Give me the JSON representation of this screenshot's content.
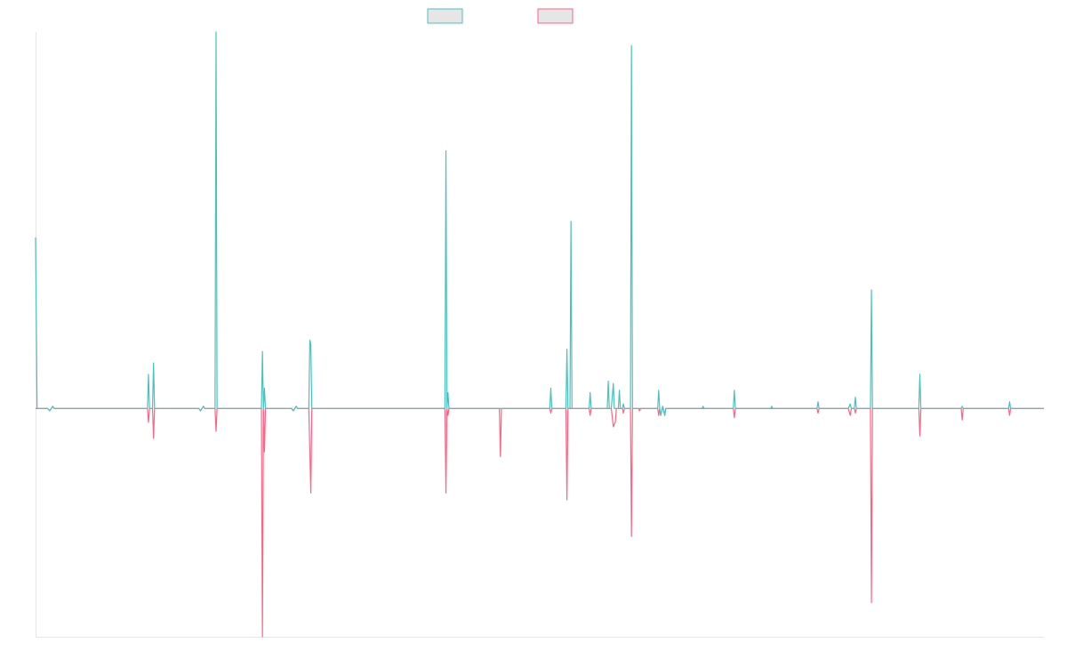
{
  "colors": {
    "series_a": "#4bc0c0",
    "series_b": "#ff6384",
    "legend_fill": "#e6e6e6",
    "axis": "#e6e6e6"
  },
  "chart_data": {
    "type": "line",
    "title": "",
    "xlabel": "",
    "ylabel": "",
    "grid": false,
    "legend_position": "top",
    "x_range": [
      0,
      1000
    ],
    "ylim": [
      -100,
      165
    ],
    "series": [
      {
        "color": "#4bc0c0",
        "points": [
          [
            0,
            75
          ],
          [
            1.5,
            0
          ],
          [
            12,
            0
          ],
          [
            14,
            -1
          ],
          [
            15.5,
            0
          ],
          [
            17,
            1
          ],
          [
            18.5,
            0
          ],
          [
            111,
            0
          ],
          [
            112,
            15
          ],
          [
            113,
            0
          ],
          [
            116,
            0
          ],
          [
            117,
            20
          ],
          [
            118,
            0
          ],
          [
            162,
            0
          ],
          [
            163.5,
            -1
          ],
          [
            165,
            0
          ],
          [
            166.5,
            1
          ],
          [
            168,
            0
          ],
          [
            178,
            0
          ],
          [
            179,
            165
          ],
          [
            180,
            0
          ],
          [
            224,
            0
          ],
          [
            225,
            25
          ],
          [
            226,
            0
          ],
          [
            227,
            9
          ],
          [
            228,
            0
          ],
          [
            254,
            0
          ],
          [
            255.5,
            -1
          ],
          [
            257,
            0
          ],
          [
            258.5,
            1
          ],
          [
            260,
            0
          ],
          [
            271,
            0
          ],
          [
            272,
            30
          ],
          [
            273,
            28
          ],
          [
            274,
            0
          ],
          [
            406,
            0
          ],
          [
            407,
            113
          ],
          [
            408,
            0
          ],
          [
            409,
            7
          ],
          [
            410,
            0
          ],
          [
            510,
            0
          ],
          [
            511,
            9
          ],
          [
            512,
            0
          ],
          [
            526,
            0
          ],
          [
            527,
            26
          ],
          [
            528,
            0
          ],
          [
            530,
            0
          ],
          [
            531,
            82
          ],
          [
            532,
            0
          ],
          [
            549,
            0
          ],
          [
            550,
            7
          ],
          [
            551,
            0
          ],
          [
            567,
            0
          ],
          [
            568,
            12
          ],
          [
            569,
            0
          ],
          [
            571,
            0
          ],
          [
            573,
            11
          ],
          [
            574,
            0
          ],
          [
            578,
            0
          ],
          [
            579,
            8
          ],
          [
            580,
            0
          ],
          [
            582,
            0
          ],
          [
            583,
            2
          ],
          [
            584,
            0
          ],
          [
            590,
            0
          ],
          [
            591,
            159
          ],
          [
            592,
            0
          ],
          [
            617,
            0
          ],
          [
            618,
            8
          ],
          [
            619,
            0
          ],
          [
            620,
            -3
          ],
          [
            622,
            1
          ],
          [
            624,
            -3
          ],
          [
            625,
            0
          ],
          [
            661,
            0
          ],
          [
            662,
            1
          ],
          [
            663,
            0
          ],
          [
            692,
            0
          ],
          [
            693,
            8
          ],
          [
            694,
            0
          ],
          [
            729,
            0
          ],
          [
            730,
            1
          ],
          [
            731,
            0
          ],
          [
            775,
            0
          ],
          [
            776,
            3
          ],
          [
            777,
            0
          ],
          [
            806,
            0
          ],
          [
            808,
            2
          ],
          [
            809,
            0
          ],
          [
            812,
            0
          ],
          [
            813,
            5
          ],
          [
            814,
            0
          ],
          [
            828,
            0
          ],
          [
            829,
            52
          ],
          [
            830,
            0
          ],
          [
            876,
            0
          ],
          [
            877,
            15
          ],
          [
            878,
            0
          ],
          [
            918,
            0
          ],
          [
            919,
            1
          ],
          [
            920,
            0
          ],
          [
            965,
            0
          ],
          [
            966,
            3
          ],
          [
            967,
            0
          ],
          [
            1000,
            0
          ]
        ]
      },
      {
        "color": "#ff6384",
        "points": [
          [
            0,
            0
          ],
          [
            12,
            0
          ],
          [
            14,
            -1
          ],
          [
            15.5,
            0
          ],
          [
            17,
            1
          ],
          [
            18.5,
            0
          ],
          [
            111,
            0
          ],
          [
            112,
            -6
          ],
          [
            113,
            0
          ],
          [
            116,
            0
          ],
          [
            117,
            -13
          ],
          [
            118,
            0
          ],
          [
            162,
            0
          ],
          [
            163.5,
            -1
          ],
          [
            165,
            0
          ],
          [
            166.5,
            1
          ],
          [
            168,
            0
          ],
          [
            178,
            0
          ],
          [
            179,
            -10
          ],
          [
            180,
            0
          ],
          [
            224,
            0
          ],
          [
            225,
            -100
          ],
          [
            226,
            0
          ],
          [
            227,
            -19
          ],
          [
            228,
            0
          ],
          [
            254,
            0
          ],
          [
            255.5,
            -1
          ],
          [
            257,
            0
          ],
          [
            258.5,
            1
          ],
          [
            260,
            0
          ],
          [
            271,
            0
          ],
          [
            273,
            -37
          ],
          [
            274,
            0
          ],
          [
            406,
            0
          ],
          [
            407,
            -37
          ],
          [
            408,
            0
          ],
          [
            409,
            -3
          ],
          [
            410,
            0
          ],
          [
            460,
            0
          ],
          [
            461,
            -21
          ],
          [
            462,
            0
          ],
          [
            510,
            0
          ],
          [
            511,
            -2
          ],
          [
            512,
            0
          ],
          [
            526,
            0
          ],
          [
            527,
            -40
          ],
          [
            528,
            0
          ],
          [
            549,
            0
          ],
          [
            550,
            -3
          ],
          [
            551,
            0
          ],
          [
            567,
            0
          ],
          [
            571,
            0
          ],
          [
            573,
            -8
          ],
          [
            575,
            -6
          ],
          [
            576,
            0
          ],
          [
            582,
            0
          ],
          [
            583,
            -2
          ],
          [
            584,
            0
          ],
          [
            590,
            0
          ],
          [
            591,
            -56
          ],
          [
            592,
            0
          ],
          [
            598,
            0
          ],
          [
            599,
            -1
          ],
          [
            600,
            0
          ],
          [
            617,
            0
          ],
          [
            618,
            -3
          ],
          [
            619,
            0
          ],
          [
            620,
            -3
          ],
          [
            622,
            1
          ],
          [
            624,
            -3
          ],
          [
            625,
            0
          ],
          [
            692,
            0
          ],
          [
            693,
            -4
          ],
          [
            694,
            0
          ],
          [
            775,
            0
          ],
          [
            776,
            -2
          ],
          [
            777,
            0
          ],
          [
            806,
            0
          ],
          [
            808,
            -3
          ],
          [
            809,
            0
          ],
          [
            812,
            0
          ],
          [
            813,
            -2
          ],
          [
            814,
            0
          ],
          [
            828,
            0
          ],
          [
            829,
            -85
          ],
          [
            830,
            0
          ],
          [
            876,
            0
          ],
          [
            877,
            -12
          ],
          [
            878,
            0
          ],
          [
            918,
            0
          ],
          [
            919,
            -5
          ],
          [
            920,
            0
          ],
          [
            965,
            0
          ],
          [
            966,
            -3
          ],
          [
            967,
            0
          ],
          [
            1000,
            0
          ]
        ]
      }
    ]
  }
}
